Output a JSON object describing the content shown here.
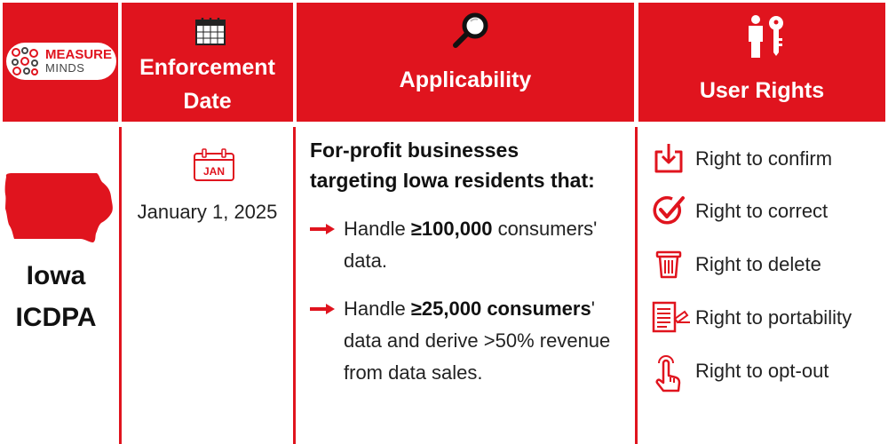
{
  "brand": {
    "line1": "MEASURE",
    "line2": "MINDS"
  },
  "header": {
    "enforcement_line1": "Enforcement",
    "enforcement_line2": "Date",
    "applicability": "Applicability",
    "user_rights": "User Rights"
  },
  "state": {
    "name_line1": "Iowa",
    "name_line2": "ICDPA"
  },
  "enforcement": {
    "calendar_label": "JAN",
    "date": "January 1, 2025"
  },
  "applicability": {
    "heading_line1": "For-profit businesses",
    "heading_line2": "targeting Iowa residents that:",
    "bullets": [
      {
        "prefix": "Handle ",
        "bold": "≥100,000",
        "suffix_line1": " consumers'",
        "line2": "data.",
        "line3": ""
      },
      {
        "prefix": "Handle ",
        "bold": "≥25,000 consumers",
        "suffix_line1": "'",
        "line2": "data and derive >50% revenue",
        "line3": "from data sales."
      }
    ]
  },
  "rights": [
    {
      "label": "Right to confirm",
      "icon": "download-icon"
    },
    {
      "label": "Right to correct",
      "icon": "check-circle-icon"
    },
    {
      "label": "Right to delete",
      "icon": "trash-icon"
    },
    {
      "label": "Right to  portability",
      "icon": "document-transfer-icon"
    },
    {
      "label": "Right to opt-out",
      "icon": "tap-hand-icon"
    }
  ],
  "colors": {
    "accent": "#e0141e",
    "text": "#111111",
    "background": "#ffffff"
  }
}
